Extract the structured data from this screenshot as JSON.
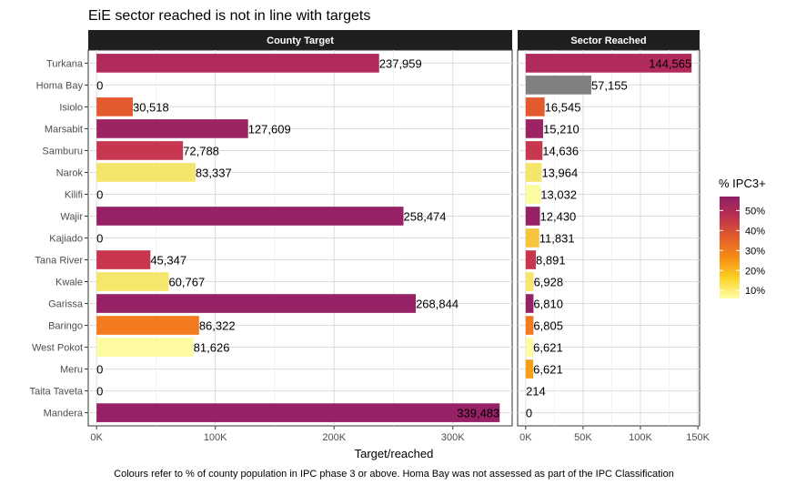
{
  "chart_data": {
    "type": "bar",
    "orientation": "horizontal",
    "title": "EiE sector reached is not in line with targets",
    "xlabel": "Target/reached",
    "caption": "Colours refer to % of county population in IPC phase 3 or above. Homa Bay was not assessed as part of the IPC Classification",
    "categories": [
      "Turkana",
      "Homa Bay",
      "Isiolo",
      "Marsabit",
      "Samburu",
      "Narok",
      "Kilifi",
      "Wajir",
      "Kajiado",
      "Tana River",
      "Kwale",
      "Garissa",
      "Baringo",
      "West Pokot",
      "Meru",
      "Taita Taveta",
      "Mandera"
    ],
    "panels": [
      {
        "name": "County Target",
        "values": [
          237959,
          0,
          30518,
          127609,
          72788,
          83337,
          0,
          258474,
          0,
          45347,
          60767,
          268844,
          86322,
          81626,
          0,
          0,
          339483
        ],
        "value_labels": [
          "237,959",
          "0",
          "30,518",
          "127,609",
          "72,788",
          "83,337",
          "0",
          "258,474",
          "0",
          "45,347",
          "60,767",
          "268,844",
          "86,322",
          "81,626",
          "0",
          "0",
          "339,483"
        ],
        "xlim": [
          -7000,
          350000
        ],
        "xticks": [
          0,
          100000,
          200000,
          300000
        ],
        "xtick_labels": [
          "0K",
          "100K",
          "200K",
          "300K"
        ]
      },
      {
        "name": "Sector Reached",
        "values": [
          144565,
          57155,
          16545,
          15210,
          14636,
          13964,
          13032,
          12430,
          11831,
          8891,
          6928,
          6810,
          6805,
          6621,
          6621,
          214,
          0
        ],
        "value_labels": [
          "144,565",
          "57,155",
          "16,545",
          "15,210",
          "14,636",
          "13,964",
          "13,032",
          "12,430",
          "11,831",
          "8,891",
          "6,928",
          "6,810",
          "6,805",
          "6,621",
          "6,621",
          "214",
          "0"
        ],
        "xlim": [
          -7000,
          151500
        ],
        "xticks": [
          0,
          50000,
          100000,
          150000
        ],
        "xtick_labels": [
          "0K",
          "50K",
          "100K",
          "150K"
        ]
      }
    ],
    "fill_colors": [
      "#b12a5c",
      "#808080",
      "#e35a2e",
      "#9d2463",
      "#c7374f",
      "#f5e56b",
      "#fdfba0",
      "#962165",
      "#f7c53c",
      "#c9354c",
      "#f6e66c",
      "#962165",
      "#f47a20",
      "#fdfba2",
      "#f5a014",
      "#fdfba0",
      "#962165"
    ],
    "legend": {
      "title": "% IPC3+",
      "ticks": [
        "10%",
        "20%",
        "30%",
        "40%",
        "50%"
      ],
      "tick_values": [
        10,
        20,
        30,
        40,
        50
      ],
      "range": [
        6,
        57
      ],
      "colors": [
        "#ffffa8",
        "#fcd225",
        "#f68d12",
        "#e35e2c",
        "#bd304f",
        "#8f1f66"
      ],
      "position": "right"
    },
    "grid": true
  }
}
